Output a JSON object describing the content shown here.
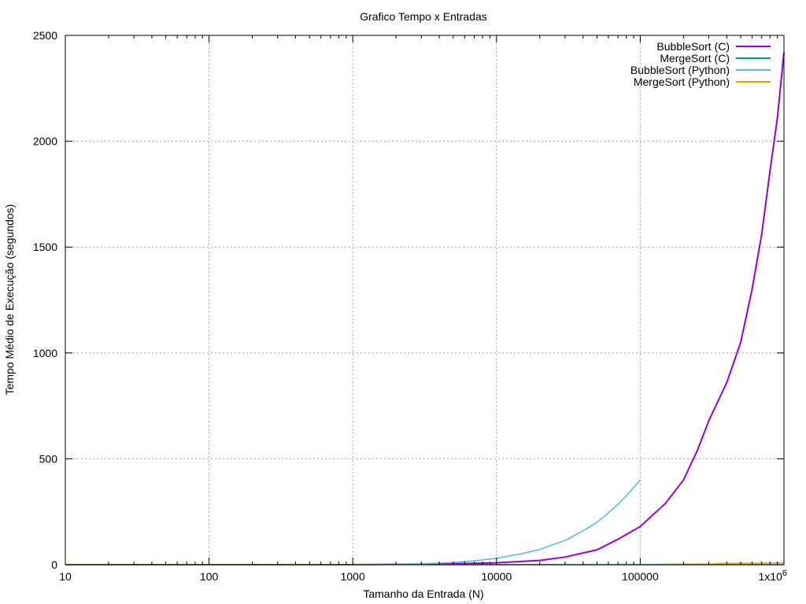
{
  "chart_data": {
    "type": "line",
    "title": "Grafico Tempo x Entradas",
    "xlabel": "Tamanho da Entrada (N)",
    "ylabel": "Tempo Médio de Execução (segundos)",
    "x_scale": "log",
    "xlim": [
      10,
      1000000
    ],
    "ylim": [
      0,
      2500
    ],
    "grid": true,
    "legend_position": "top-right",
    "x_ticks": [
      {
        "value": 10,
        "label": "10"
      },
      {
        "value": 100,
        "label": "100"
      },
      {
        "value": 1000,
        "label": "1000"
      },
      {
        "value": 10000,
        "label": "10000"
      },
      {
        "value": 100000,
        "label": "100000"
      },
      {
        "value": 1000000,
        "label": "1x10",
        "sup": "6"
      }
    ],
    "y_ticks": [
      {
        "value": 0,
        "label": "0"
      },
      {
        "value": 500,
        "label": "500"
      },
      {
        "value": 1000,
        "label": "1000"
      },
      {
        "value": 1500,
        "label": "1500"
      },
      {
        "value": 2000,
        "label": "2000"
      },
      {
        "value": 2500,
        "label": "2500"
      }
    ],
    "series": [
      {
        "name": "BubbleSort (C)",
        "color": "#9400d3",
        "x": [
          10,
          1000,
          5000,
          10000,
          20000,
          30000,
          50000,
          70000,
          100000,
          150000,
          200000,
          250000,
          300000,
          400000,
          500000,
          600000,
          700000,
          800000,
          900000,
          1000000
        ],
        "y": [
          0,
          0.1,
          4,
          9,
          20,
          36,
          70,
          120,
          180,
          290,
          400,
          540,
          680,
          860,
          1050,
          1300,
          1560,
          1860,
          2110,
          2420
        ]
      },
      {
        "name": "MergeSort (C)",
        "color": "#009e73",
        "x": [
          10,
          100,
          1000,
          10000,
          100000,
          1000000
        ],
        "y": [
          0,
          0,
          0,
          0,
          0.02,
          0.2
        ]
      },
      {
        "name": "BubbleSort (Python)",
        "color": "#56b4e9",
        "x": [
          1000,
          2000,
          3000,
          5000,
          7000,
          10000,
          15000,
          20000,
          30000,
          40000,
          50000,
          60000,
          70000,
          80000,
          90000,
          100000
        ],
        "y": [
          0.5,
          2,
          4,
          10,
          18,
          30,
          52,
          72,
          115,
          160,
          200,
          245,
          285,
          325,
          365,
          400
        ]
      },
      {
        "name": "MergeSort (Python)",
        "color": "#e69f00",
        "x": [
          10,
          1000,
          10000,
          100000,
          300000,
          400000,
          600000,
          800000,
          1000000
        ],
        "y": [
          0,
          0,
          0.1,
          1,
          3,
          6,
          7,
          8,
          9
        ]
      }
    ]
  }
}
